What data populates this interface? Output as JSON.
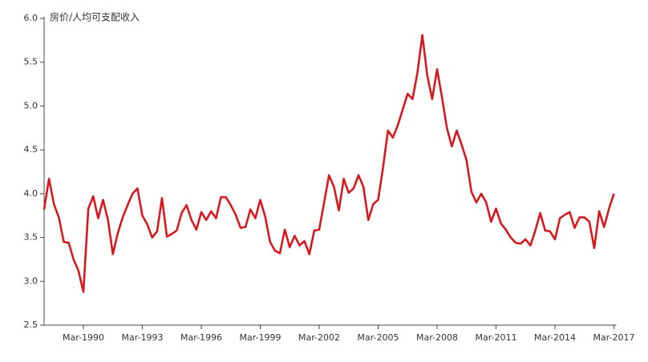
{
  "chart_data": {
    "type": "line",
    "title": "房价/人均可支配收入",
    "categories": [
      null,
      null,
      null,
      null,
      null,
      null,
      null,
      null,
      "Mar-1990",
      null,
      null,
      null,
      null,
      null,
      null,
      null,
      null,
      null,
      null,
      null,
      "Mar-1993",
      null,
      null,
      null,
      null,
      null,
      null,
      null,
      null,
      null,
      null,
      null,
      "Mar-1996",
      null,
      null,
      null,
      null,
      null,
      null,
      null,
      null,
      null,
      null,
      null,
      "Mar-1999",
      null,
      null,
      null,
      null,
      null,
      null,
      null,
      null,
      null,
      null,
      null,
      "Mar-2002",
      null,
      null,
      null,
      null,
      null,
      null,
      null,
      null,
      null,
      null,
      null,
      "Mar-2005",
      null,
      null,
      null,
      null,
      null,
      null,
      null,
      null,
      null,
      null,
      null,
      "Mar-2008",
      null,
      null,
      null,
      null,
      null,
      null,
      null,
      null,
      null,
      null,
      null,
      "Mar-2011",
      null,
      null,
      null,
      null,
      null,
      null,
      null,
      null,
      null,
      null,
      null,
      "Mar-2014",
      null,
      null,
      null,
      null,
      null,
      null,
      null,
      null,
      null,
      null,
      null,
      "Mar-2017"
    ],
    "series": [
      {
        "color": "#d7191f",
        "values": [
          3.82,
          4.17,
          3.88,
          3.73,
          3.45,
          3.44,
          3.25,
          3.12,
          2.88,
          3.83,
          3.97,
          3.72,
          3.93,
          3.7,
          3.31,
          3.55,
          3.73,
          3.87,
          4.0,
          4.06,
          3.75,
          3.65,
          3.5,
          3.57,
          3.95,
          3.51,
          3.54,
          3.58,
          3.78,
          3.87,
          3.7,
          3.59,
          3.79,
          3.7,
          3.8,
          3.72,
          3.96,
          3.96,
          3.87,
          3.76,
          3.61,
          3.62,
          3.82,
          3.72,
          3.93,
          3.74,
          3.45,
          3.35,
          3.32,
          3.59,
          3.39,
          3.52,
          3.41,
          3.46,
          3.31,
          3.58,
          3.59,
          3.9,
          4.21,
          4.08,
          3.81,
          4.17,
          4.01,
          4.06,
          4.21,
          4.08,
          3.7,
          3.88,
          3.93,
          4.3,
          4.72,
          4.64,
          4.78,
          4.96,
          5.14,
          5.08,
          5.38,
          5.81,
          5.35,
          5.08,
          5.42,
          5.1,
          4.75,
          4.54,
          4.72,
          4.56,
          4.38,
          4.02,
          3.9,
          4.0,
          3.9,
          3.68,
          3.83,
          3.66,
          3.59,
          3.5,
          3.44,
          3.43,
          3.48,
          3.41,
          3.58,
          3.78,
          3.58,
          3.57,
          3.48,
          3.72,
          3.76,
          3.79,
          3.61,
          3.73,
          3.73,
          3.68,
          3.38,
          3.8,
          3.62,
          3.83,
          4.0
        ]
      }
    ],
    "ylim": [
      2.5,
      6
    ],
    "yticks": [
      2.5,
      {
        "value": 3,
        "label": "3.0"
      },
      3.5,
      {
        "value": 4,
        "label": "4.0"
      },
      4.5,
      {
        "value": 5,
        "label": "5.0"
      },
      5.5,
      {
        "value": 6,
        "label": "6.0"
      }
    ],
    "grid": false
  }
}
